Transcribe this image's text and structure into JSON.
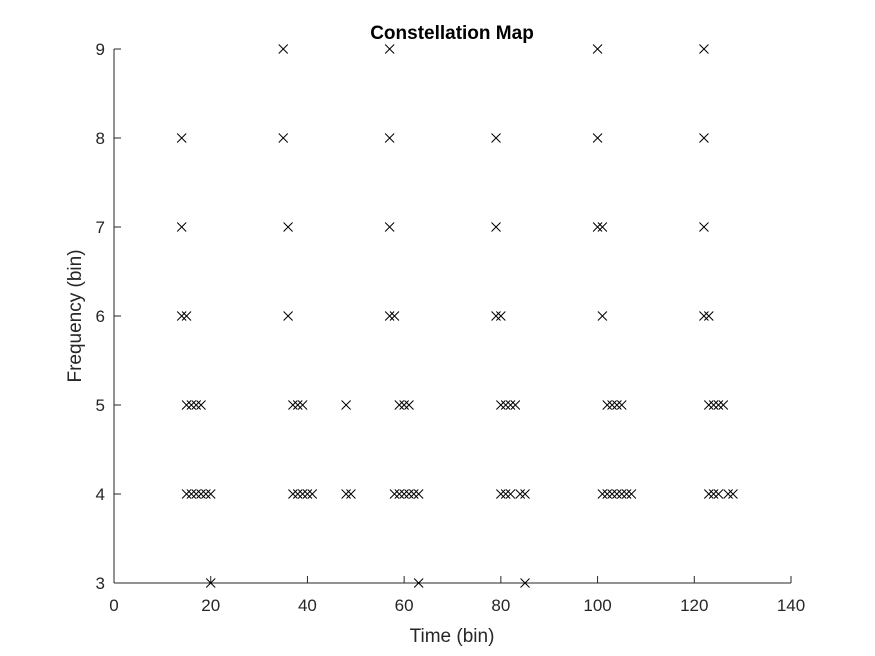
{
  "chart_data": {
    "type": "scatter",
    "title": "Constellation Map",
    "xlabel": "Time (bin)",
    "ylabel": "Frequency (bin)",
    "xlim": [
      0,
      140
    ],
    "ylim": [
      3,
      9
    ],
    "xticks": [
      0,
      20,
      40,
      60,
      80,
      100,
      120,
      140
    ],
    "yticks": [
      3,
      4,
      5,
      6,
      7,
      8,
      9
    ],
    "marker": "x",
    "marker_color": "#000000",
    "grid": false,
    "legend": "none",
    "points": [
      [
        14,
        8
      ],
      [
        14,
        7
      ],
      [
        14,
        6
      ],
      [
        15,
        6
      ],
      [
        15,
        5
      ],
      [
        16,
        5
      ],
      [
        17,
        5
      ],
      [
        18,
        5
      ],
      [
        15,
        4
      ],
      [
        16,
        4
      ],
      [
        17,
        4
      ],
      [
        18,
        4
      ],
      [
        19,
        4
      ],
      [
        20,
        4
      ],
      [
        20,
        3
      ],
      [
        35,
        9
      ],
      [
        35,
        8
      ],
      [
        36,
        7
      ],
      [
        36,
        6
      ],
      [
        37,
        5
      ],
      [
        38,
        5
      ],
      [
        39,
        5
      ],
      [
        37,
        4
      ],
      [
        38,
        4
      ],
      [
        39,
        4
      ],
      [
        40,
        4
      ],
      [
        41,
        4
      ],
      [
        48,
        5
      ],
      [
        48,
        4
      ],
      [
        49,
        4
      ],
      [
        57,
        9
      ],
      [
        57,
        8
      ],
      [
        57,
        7
      ],
      [
        57,
        6
      ],
      [
        58,
        6
      ],
      [
        59,
        5
      ],
      [
        60,
        5
      ],
      [
        61,
        5
      ],
      [
        58,
        4
      ],
      [
        59,
        4
      ],
      [
        60,
        4
      ],
      [
        61,
        4
      ],
      [
        62,
        4
      ],
      [
        63,
        4
      ],
      [
        63,
        3
      ],
      [
        79,
        8
      ],
      [
        79,
        7
      ],
      [
        79,
        6
      ],
      [
        80,
        6
      ],
      [
        80,
        5
      ],
      [
        81,
        5
      ],
      [
        82,
        5
      ],
      [
        83,
        5
      ],
      [
        80,
        4
      ],
      [
        81,
        4
      ],
      [
        82,
        4
      ],
      [
        84,
        4
      ],
      [
        85,
        4
      ],
      [
        85,
        3
      ],
      [
        100,
        9
      ],
      [
        100,
        8
      ],
      [
        100,
        7
      ],
      [
        101,
        7
      ],
      [
        101,
        6
      ],
      [
        102,
        5
      ],
      [
        103,
        5
      ],
      [
        104,
        5
      ],
      [
        105,
        5
      ],
      [
        101,
        4
      ],
      [
        102,
        4
      ],
      [
        103,
        4
      ],
      [
        104,
        4
      ],
      [
        105,
        4
      ],
      [
        106,
        4
      ],
      [
        107,
        4
      ],
      [
        122,
        9
      ],
      [
        122,
        8
      ],
      [
        122,
        7
      ],
      [
        122,
        6
      ],
      [
        123,
        6
      ],
      [
        123,
        5
      ],
      [
        124,
        5
      ],
      [
        125,
        5
      ],
      [
        126,
        5
      ],
      [
        123,
        4
      ],
      [
        124,
        4
      ],
      [
        125,
        4
      ],
      [
        127,
        4
      ],
      [
        128,
        4
      ]
    ]
  }
}
